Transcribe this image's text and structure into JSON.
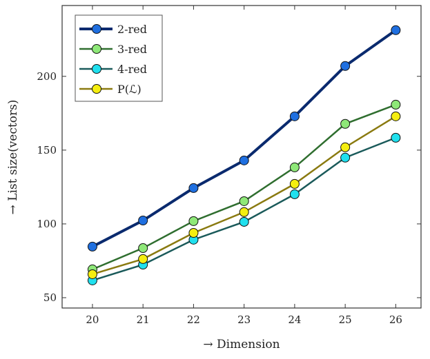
{
  "chart_data": {
    "type": "line",
    "title": "",
    "xlabel": "→ Dimension",
    "ylabel": "→ List size(vectors)",
    "x": [
      20,
      21,
      22,
      23,
      24,
      25,
      26
    ],
    "xticks": [
      "20",
      "21",
      "22",
      "23",
      "24",
      "25",
      "26"
    ],
    "yticks": [
      "50",
      "100",
      "150",
      "200"
    ],
    "xlim": [
      19.4,
      26.5
    ],
    "ylim": [
      43,
      248
    ],
    "grid": false,
    "legend_position": "top-left",
    "series": [
      {
        "name": "2-red",
        "values": [
          84.6,
          102.3,
          124.3,
          143.0,
          172.9,
          207.0,
          231.3
        ],
        "line_color": "#0a2a6e",
        "marker_color": "#1f6fe0"
      },
      {
        "name": "3-red",
        "values": [
          69.2,
          83.6,
          101.9,
          115.4,
          138.3,
          167.8,
          180.8
        ],
        "line_color": "#2f6e2f",
        "marker_color": "#8ee878"
      },
      {
        "name": "4-red",
        "values": [
          61.7,
          72.4,
          89.3,
          101.4,
          120.1,
          144.9,
          158.4
        ],
        "line_color": "#1a5a5a",
        "marker_color": "#20e0ee"
      },
      {
        "name": "P(ℒ)",
        "values": [
          65.9,
          76.2,
          93.9,
          108.0,
          127.1,
          151.9,
          172.9
        ],
        "line_color": "#8a7a10",
        "marker_color": "#f5ee10"
      }
    ]
  }
}
